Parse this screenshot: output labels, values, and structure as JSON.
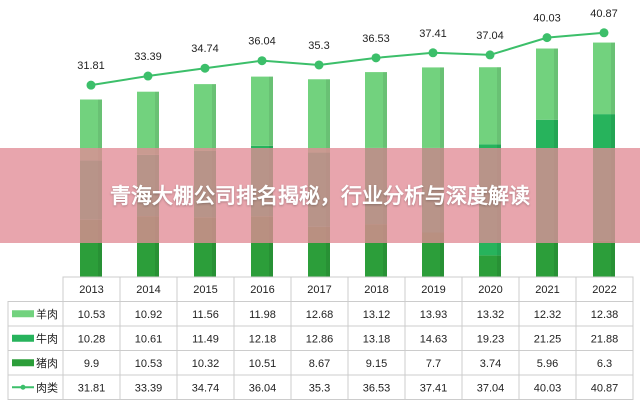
{
  "banner": {
    "title": "青海大棚公司排名揭秘，行业分析与深度解读"
  },
  "chart_data": {
    "type": "bar",
    "stacked": true,
    "categories": [
      "2013",
      "2014",
      "2015",
      "2016",
      "2017",
      "2018",
      "2019",
      "2020",
      "2021",
      "2022"
    ],
    "series": [
      {
        "name": "猪肉",
        "kind": "bar",
        "color": "#2c9e3a",
        "values": [
          9.9,
          10.53,
          10.32,
          10.51,
          8.67,
          9.15,
          7.7,
          3.74,
          5.96,
          6.3
        ]
      },
      {
        "name": "牛肉",
        "kind": "bar",
        "color": "#27b35c",
        "values": [
          10.28,
          10.61,
          11.49,
          12.18,
          12.86,
          13.18,
          14.63,
          19.23,
          21.25,
          21.88
        ]
      },
      {
        "name": "羊肉",
        "kind": "bar",
        "color": "#72d27e",
        "values": [
          10.53,
          10.92,
          11.56,
          11.98,
          12.68,
          13.12,
          13.93,
          13.32,
          12.32,
          12.38
        ]
      },
      {
        "name": "肉类",
        "kind": "line",
        "color": "#3cbf6a",
        "values": [
          31.81,
          33.39,
          34.74,
          36.04,
          35.3,
          36.53,
          37.41,
          37.04,
          40.03,
          40.87
        ]
      }
    ],
    "table_order": [
      "羊肉",
      "牛肉",
      "猪肉",
      "肉类"
    ],
    "legend": "table-left",
    "grid": false
  }
}
